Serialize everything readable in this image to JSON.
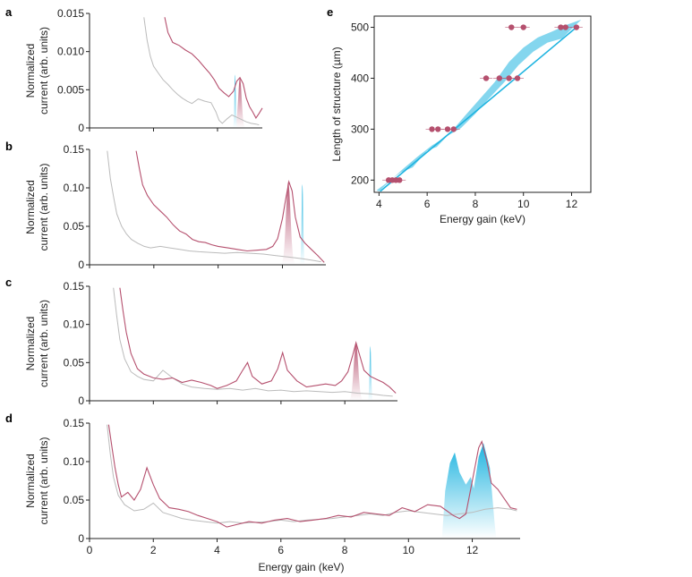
{
  "colors": {
    "red": "#b5506e",
    "blue": "#1fb4e0",
    "grey": "#bbbbbb",
    "axis": "#222222",
    "redLight": "#f3dfe6",
    "blueLight": "#e2f5fc"
  },
  "panel_labels": [
    "a",
    "b",
    "c",
    "d",
    "e"
  ],
  "chart_data": [
    {
      "panel": "a",
      "type": "line",
      "ylabel": [
        "Normalized",
        "current (arb. units)"
      ],
      "xlim": [
        0,
        5.4
      ],
      "ylim": [
        0,
        0.015
      ],
      "yticks": [
        "0",
        "0.005",
        "0.010",
        "0.015"
      ],
      "red": [
        [
          2.35,
          0.0145
        ],
        [
          2.45,
          0.0125
        ],
        [
          2.6,
          0.0112
        ],
        [
          2.8,
          0.0108
        ],
        [
          3.0,
          0.0102
        ],
        [
          3.2,
          0.0097
        ],
        [
          3.4,
          0.0089
        ],
        [
          3.6,
          0.0079
        ],
        [
          3.75,
          0.0072
        ],
        [
          3.9,
          0.0063
        ],
        [
          4.05,
          0.0052
        ],
        [
          4.2,
          0.0046
        ],
        [
          4.35,
          0.0041
        ],
        [
          4.5,
          0.0048
        ],
        [
          4.6,
          0.0061
        ],
        [
          4.7,
          0.0066
        ],
        [
          4.8,
          0.0058
        ],
        [
          4.9,
          0.0039
        ],
        [
          5.0,
          0.0028
        ],
        [
          5.1,
          0.0021
        ],
        [
          5.2,
          0.0013
        ],
        [
          5.3,
          0.0019
        ],
        [
          5.4,
          0.0026
        ]
      ],
      "grey": [
        [
          1.7,
          0.0145
        ],
        [
          1.8,
          0.0115
        ],
        [
          1.9,
          0.0094
        ],
        [
          2.0,
          0.0081
        ],
        [
          2.15,
          0.0072
        ],
        [
          2.3,
          0.0063
        ],
        [
          2.45,
          0.0057
        ],
        [
          2.6,
          0.005
        ],
        [
          2.75,
          0.0044
        ],
        [
          2.9,
          0.0039
        ],
        [
          3.05,
          0.0035
        ],
        [
          3.2,
          0.0032
        ],
        [
          3.4,
          0.0038
        ],
        [
          3.6,
          0.0035
        ],
        [
          3.8,
          0.0033
        ],
        [
          3.95,
          0.0021
        ],
        [
          4.05,
          0.001
        ],
        [
          4.15,
          0.0006
        ],
        [
          4.3,
          0.0012
        ],
        [
          4.45,
          0.0017
        ],
        [
          4.6,
          0.0014
        ],
        [
          4.75,
          0.0011
        ],
        [
          4.9,
          0.0008
        ],
        [
          5.05,
          0.0006
        ],
        [
          5.2,
          0.0005
        ],
        [
          5.3,
          0.0004
        ]
      ],
      "red_peak": [
        4.7,
        0.0066,
        0.17
      ],
      "blue_peak": [
        4.55,
        0.007,
        0.07
      ]
    },
    {
      "panel": "b",
      "type": "line",
      "ylabel": [
        "Normalized",
        "current (arb. units)"
      ],
      "xlim": [
        0,
        7.35
      ],
      "ylim": [
        0,
        0.15
      ],
      "yticks": [
        "0",
        "0.05",
        "0.10",
        "0.15"
      ],
      "red": [
        [
          1.45,
          0.148
        ],
        [
          1.55,
          0.125
        ],
        [
          1.65,
          0.104
        ],
        [
          1.8,
          0.09
        ],
        [
          2.0,
          0.078
        ],
        [
          2.2,
          0.07
        ],
        [
          2.4,
          0.062
        ],
        [
          2.6,
          0.052
        ],
        [
          2.8,
          0.044
        ],
        [
          3.0,
          0.04
        ],
        [
          3.2,
          0.033
        ],
        [
          3.4,
          0.03
        ],
        [
          3.6,
          0.029
        ],
        [
          3.8,
          0.026
        ],
        [
          4.0,
          0.024
        ],
        [
          4.3,
          0.022
        ],
        [
          4.6,
          0.02
        ],
        [
          4.9,
          0.018
        ],
        [
          5.2,
          0.019
        ],
        [
          5.5,
          0.02
        ],
        [
          5.7,
          0.024
        ],
        [
          5.85,
          0.034
        ],
        [
          6.0,
          0.06
        ],
        [
          6.1,
          0.085
        ],
        [
          6.2,
          0.108
        ],
        [
          6.3,
          0.096
        ],
        [
          6.4,
          0.062
        ],
        [
          6.55,
          0.036
        ],
        [
          6.7,
          0.028
        ],
        [
          6.9,
          0.02
        ],
        [
          7.1,
          0.012
        ],
        [
          7.3,
          0.003
        ]
      ],
      "grey": [
        [
          0.55,
          0.148
        ],
        [
          0.65,
          0.112
        ],
        [
          0.75,
          0.088
        ],
        [
          0.85,
          0.066
        ],
        [
          1.0,
          0.05
        ],
        [
          1.15,
          0.04
        ],
        [
          1.3,
          0.033
        ],
        [
          1.5,
          0.028
        ],
        [
          1.7,
          0.024
        ],
        [
          1.9,
          0.022
        ],
        [
          2.2,
          0.024
        ],
        [
          2.5,
          0.022
        ],
        [
          2.8,
          0.02
        ],
        [
          3.1,
          0.018
        ],
        [
          3.4,
          0.017
        ],
        [
          3.8,
          0.016
        ],
        [
          4.2,
          0.015
        ],
        [
          4.6,
          0.016
        ],
        [
          5.0,
          0.015
        ],
        [
          5.4,
          0.014
        ],
        [
          5.8,
          0.012
        ],
        [
          6.2,
          0.01
        ],
        [
          6.6,
          0.008
        ],
        [
          6.9,
          0.006
        ],
        [
          7.2,
          0.004
        ]
      ],
      "red_peak": [
        6.18,
        0.108,
        0.22
      ],
      "blue_peak": [
        6.62,
        0.105,
        0.08
      ]
    },
    {
      "panel": "c",
      "type": "line",
      "ylabel": [
        "Normalized",
        "current (arb. units)"
      ],
      "xlim": [
        0,
        9.65
      ],
      "ylim": [
        0,
        0.15
      ],
      "yticks": [
        "0",
        "0.05",
        "0.10",
        "0.15"
      ],
      "red": [
        [
          0.95,
          0.148
        ],
        [
          1.05,
          0.118
        ],
        [
          1.15,
          0.09
        ],
        [
          1.3,
          0.062
        ],
        [
          1.5,
          0.042
        ],
        [
          1.7,
          0.035
        ],
        [
          2.0,
          0.03
        ],
        [
          2.3,
          0.028
        ],
        [
          2.6,
          0.03
        ],
        [
          2.9,
          0.024
        ],
        [
          3.2,
          0.027
        ],
        [
          3.5,
          0.024
        ],
        [
          3.8,
          0.02
        ],
        [
          4.0,
          0.016
        ],
        [
          4.3,
          0.02
        ],
        [
          4.6,
          0.026
        ],
        [
          4.8,
          0.04
        ],
        [
          4.95,
          0.05
        ],
        [
          5.1,
          0.032
        ],
        [
          5.4,
          0.022
        ],
        [
          5.7,
          0.026
        ],
        [
          5.9,
          0.042
        ],
        [
          6.05,
          0.063
        ],
        [
          6.2,
          0.04
        ],
        [
          6.5,
          0.026
        ],
        [
          6.8,
          0.018
        ],
        [
          7.1,
          0.02
        ],
        [
          7.4,
          0.022
        ],
        [
          7.7,
          0.02
        ],
        [
          7.9,
          0.026
        ],
        [
          8.1,
          0.038
        ],
        [
          8.25,
          0.06
        ],
        [
          8.35,
          0.076
        ],
        [
          8.45,
          0.062
        ],
        [
          8.6,
          0.04
        ],
        [
          8.8,
          0.032
        ],
        [
          9.0,
          0.028
        ],
        [
          9.2,
          0.024
        ],
        [
          9.4,
          0.018
        ],
        [
          9.6,
          0.01
        ]
      ],
      "grey": [
        [
          0.75,
          0.148
        ],
        [
          0.85,
          0.112
        ],
        [
          0.95,
          0.08
        ],
        [
          1.1,
          0.055
        ],
        [
          1.3,
          0.038
        ],
        [
          1.5,
          0.032
        ],
        [
          1.7,
          0.028
        ],
        [
          2.0,
          0.026
        ],
        [
          2.3,
          0.04
        ],
        [
          2.6,
          0.03
        ],
        [
          2.9,
          0.022
        ],
        [
          3.2,
          0.018
        ],
        [
          3.6,
          0.016
        ],
        [
          4.0,
          0.015
        ],
        [
          4.4,
          0.016
        ],
        [
          4.8,
          0.014
        ],
        [
          5.2,
          0.016
        ],
        [
          5.6,
          0.013
        ],
        [
          6.0,
          0.014
        ],
        [
          6.4,
          0.012
        ],
        [
          6.8,
          0.013
        ],
        [
          7.2,
          0.012
        ],
        [
          7.6,
          0.011
        ],
        [
          8.0,
          0.012
        ],
        [
          8.4,
          0.01
        ],
        [
          8.8,
          0.009
        ],
        [
          9.2,
          0.007
        ],
        [
          9.5,
          0.006
        ]
      ],
      "red_peak": [
        8.35,
        0.076,
        0.22
      ],
      "blue_peak": [
        8.8,
        0.072,
        0.08
      ]
    },
    {
      "panel": "d",
      "type": "line",
      "ylabel": [
        "Normalized",
        "current (arb. units)"
      ],
      "xlabel": "Energy gain (keV)",
      "xlim": [
        0,
        13.5
      ],
      "ylim": [
        0,
        0.15
      ],
      "xticks": [
        0,
        2,
        4,
        6,
        8,
        10,
        12
      ],
      "yticks": [
        "0",
        "0.05",
        "0.10",
        "0.15"
      ],
      "red": [
        [
          0.6,
          0.148
        ],
        [
          0.7,
          0.12
        ],
        [
          0.8,
          0.092
        ],
        [
          0.9,
          0.07
        ],
        [
          1.0,
          0.054
        ],
        [
          1.2,
          0.06
        ],
        [
          1.4,
          0.05
        ],
        [
          1.6,
          0.064
        ],
        [
          1.8,
          0.092
        ],
        [
          2.0,
          0.07
        ],
        [
          2.2,
          0.052
        ],
        [
          2.5,
          0.04
        ],
        [
          2.8,
          0.038
        ],
        [
          3.1,
          0.035
        ],
        [
          3.4,
          0.03
        ],
        [
          3.7,
          0.026
        ],
        [
          4.0,
          0.022
        ],
        [
          4.3,
          0.015
        ],
        [
          4.6,
          0.018
        ],
        [
          5.0,
          0.022
        ],
        [
          5.4,
          0.02
        ],
        [
          5.8,
          0.024
        ],
        [
          6.2,
          0.026
        ],
        [
          6.6,
          0.022
        ],
        [
          7.0,
          0.024
        ],
        [
          7.4,
          0.026
        ],
        [
          7.8,
          0.03
        ],
        [
          8.2,
          0.028
        ],
        [
          8.6,
          0.034
        ],
        [
          9.0,
          0.032
        ],
        [
          9.4,
          0.03
        ],
        [
          9.8,
          0.04
        ],
        [
          10.2,
          0.035
        ],
        [
          10.6,
          0.044
        ],
        [
          11.0,
          0.042
        ],
        [
          11.2,
          0.036
        ],
        [
          11.4,
          0.03
        ],
        [
          11.6,
          0.026
        ],
        [
          11.8,
          0.032
        ],
        [
          12.0,
          0.075
        ],
        [
          12.2,
          0.118
        ],
        [
          12.3,
          0.126
        ],
        [
          12.45,
          0.102
        ],
        [
          12.6,
          0.072
        ],
        [
          12.8,
          0.064
        ],
        [
          13.0,
          0.052
        ],
        [
          13.2,
          0.04
        ],
        [
          13.4,
          0.038
        ]
      ],
      "grey": [
        [
          0.55,
          0.148
        ],
        [
          0.65,
          0.11
        ],
        [
          0.75,
          0.08
        ],
        [
          0.9,
          0.056
        ],
        [
          1.1,
          0.044
        ],
        [
          1.4,
          0.036
        ],
        [
          1.7,
          0.038
        ],
        [
          2.0,
          0.046
        ],
        [
          2.3,
          0.034
        ],
        [
          2.6,
          0.03
        ],
        [
          2.9,
          0.026
        ],
        [
          3.2,
          0.024
        ],
        [
          3.6,
          0.022
        ],
        [
          4.0,
          0.02
        ],
        [
          4.4,
          0.022
        ],
        [
          4.8,
          0.02
        ],
        [
          5.2,
          0.021
        ],
        [
          5.6,
          0.022
        ],
        [
          6.0,
          0.024
        ],
        [
          6.4,
          0.022
        ],
        [
          6.8,
          0.024
        ],
        [
          7.2,
          0.025
        ],
        [
          7.6,
          0.026
        ],
        [
          8.0,
          0.028
        ],
        [
          8.4,
          0.03
        ],
        [
          8.8,
          0.032
        ],
        [
          9.2,
          0.03
        ],
        [
          9.6,
          0.034
        ],
        [
          10.0,
          0.036
        ],
        [
          10.4,
          0.034
        ],
        [
          10.8,
          0.032
        ],
        [
          11.2,
          0.03
        ],
        [
          11.6,
          0.032
        ],
        [
          12.0,
          0.034
        ],
        [
          12.4,
          0.038
        ],
        [
          12.8,
          0.04
        ],
        [
          13.2,
          0.038
        ],
        [
          13.4,
          0.036
        ]
      ],
      "blue_band": [
        [
          11.05,
          0
        ],
        [
          11.15,
          0.062
        ],
        [
          11.3,
          0.098
        ],
        [
          11.45,
          0.112
        ],
        [
          11.6,
          0.086
        ],
        [
          11.8,
          0.07
        ],
        [
          11.95,
          0.08
        ],
        [
          12.05,
          0.065
        ],
        [
          12.2,
          0.106
        ],
        [
          12.35,
          0.124
        ],
        [
          12.55,
          0.092
        ],
        [
          12.7,
          0.02
        ],
        [
          12.75,
          0
        ]
      ]
    },
    {
      "panel": "e",
      "type": "scatter",
      "xlabel": "Energy gain (keV)",
      "ylabel": "Length of structure (µm)",
      "xlim": [
        3.8,
        12.8
      ],
      "ylim": [
        176,
        522
      ],
      "xticks": [
        4,
        6,
        8,
        10,
        12
      ],
      "yticks": [
        200,
        300,
        400,
        500
      ],
      "points": [
        [
          4.4,
          200
        ],
        [
          4.55,
          200
        ],
        [
          4.7,
          200
        ],
        [
          4.85,
          200
        ],
        [
          6.2,
          300
        ],
        [
          6.45,
          300
        ],
        [
          6.85,
          300
        ],
        [
          7.1,
          300
        ],
        [
          8.45,
          400
        ],
        [
          9.0,
          400
        ],
        [
          9.4,
          400
        ],
        [
          9.75,
          400
        ],
        [
          9.5,
          500
        ],
        [
          10.0,
          500
        ],
        [
          11.55,
          500
        ],
        [
          11.75,
          500
        ],
        [
          12.2,
          500
        ]
      ],
      "fit": [
        [
          4.05,
          178
        ],
        [
          12.2,
          500
        ]
      ],
      "band": [
        [
          3.9,
          180
        ],
        [
          4.9,
          215
        ],
        [
          5.4,
          225
        ],
        [
          6.0,
          258
        ],
        [
          6.4,
          265
        ],
        [
          7.0,
          295
        ],
        [
          7.6,
          328
        ],
        [
          8.2,
          360
        ],
        [
          8.8,
          392
        ],
        [
          9.4,
          432
        ],
        [
          10.0,
          460
        ],
        [
          10.6,
          480
        ],
        [
          11.2,
          492
        ],
        [
          11.8,
          505
        ],
        [
          12.4,
          515
        ],
        [
          11.6,
          478
        ],
        [
          11.0,
          470
        ],
        [
          10.4,
          452
        ],
        [
          9.8,
          426
        ],
        [
          9.2,
          392
        ],
        [
          8.6,
          362
        ],
        [
          8.0,
          330
        ],
        [
          7.4,
          302
        ],
        [
          6.8,
          286
        ],
        [
          6.2,
          268
        ],
        [
          5.6,
          246
        ],
        [
          5.0,
          222
        ],
        [
          4.4,
          196
        ],
        [
          4.0,
          178
        ]
      ]
    }
  ]
}
